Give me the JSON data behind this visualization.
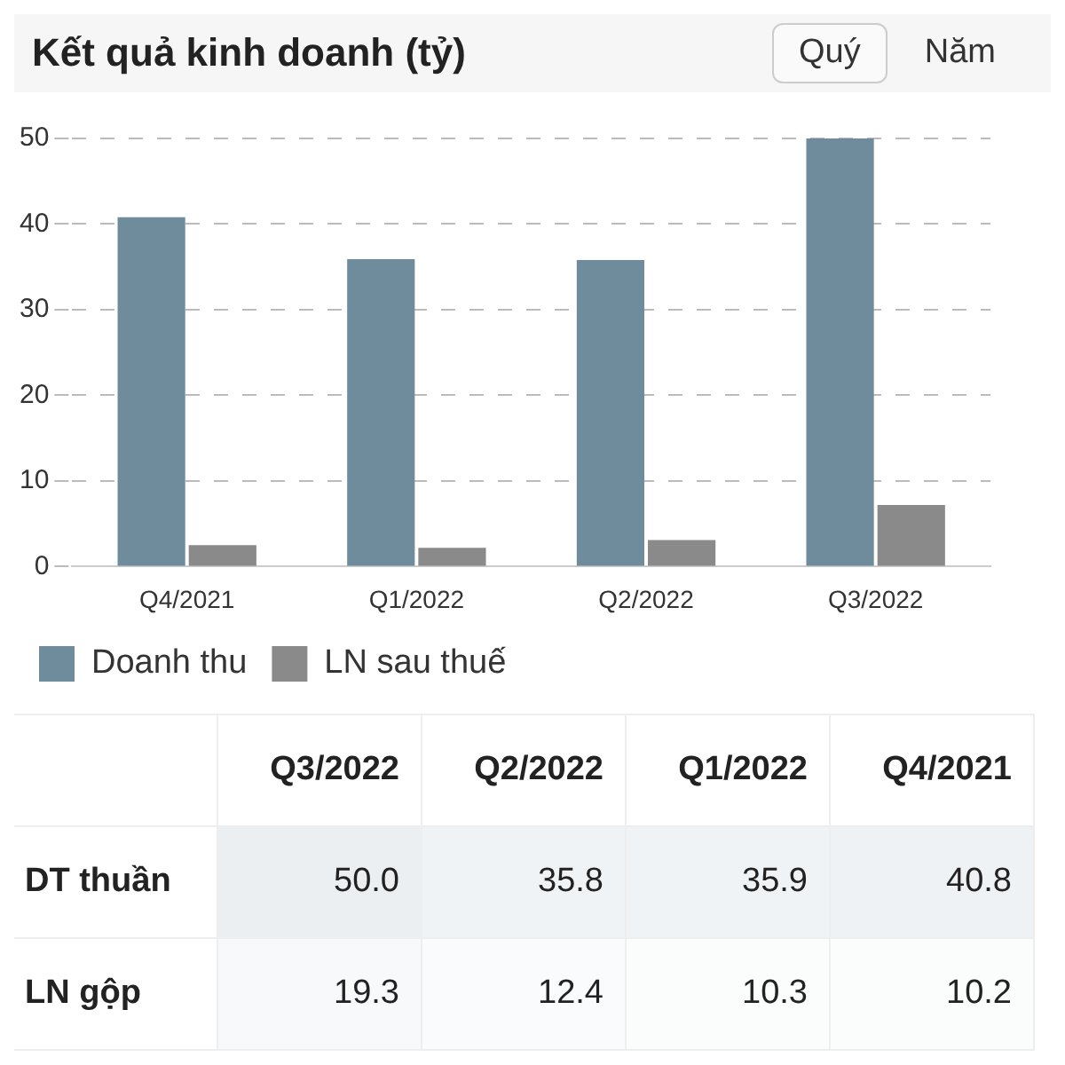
{
  "chart_data": [
    {
      "type": "bar",
      "title": "Kết quả kinh doanh (tỷ)",
      "annotations": [
        "Quý",
        "Năm"
      ],
      "categories": [
        "Q4/2021",
        "Q1/2022",
        "Q2/2022",
        "Q3/2022"
      ],
      "series": [
        {
          "name": "Doanh thu",
          "color": "#6f8c9c",
          "values": [
            40.8,
            35.9,
            35.8,
            50.0
          ]
        },
        {
          "name": "LN sau thuế",
          "color": "#8a8a8a",
          "values": [
            2.5,
            2.2,
            3.1,
            7.2
          ]
        }
      ],
      "ylim": [
        0,
        50
      ],
      "yticks": [
        0,
        10,
        20,
        30,
        40,
        50
      ],
      "grid": "y",
      "line_style": "dashed",
      "legend": "bottom"
    },
    {
      "type": "heatmap",
      "categories": [
        "Q3/2022",
        "Q2/2022",
        "Q1/2022",
        "Q4/2021"
      ],
      "y_categories": [
        "DT thuần",
        "LN gộp"
      ],
      "cells": [
        [
          50.0,
          35.8,
          35.9,
          40.8
        ],
        [
          19.3,
          12.4,
          10.3,
          10.2
        ]
      ],
      "cell_labels": [
        [
          "50.0",
          "35.8",
          "35.9",
          "40.8"
        ],
        [
          "19.3",
          "12.4",
          "10.3",
          "10.2"
        ]
      ]
    }
  ]
}
